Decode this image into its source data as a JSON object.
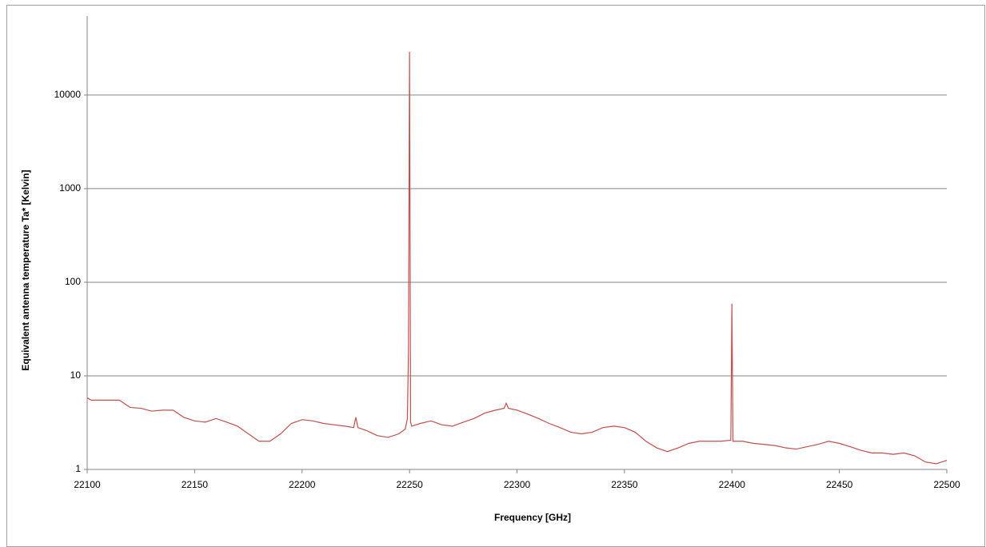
{
  "chart_data": {
    "type": "line",
    "x_label": "Frequency [GHz]",
    "y_label": "Equivalent antenna temperature Ta* [Kelvin]",
    "color": "#c0504d",
    "log_y": true,
    "grid": true,
    "xlim": [
      22100,
      22500
    ],
    "xticks": [
      22100,
      22150,
      22200,
      22250,
      22300,
      22350,
      22400,
      22450,
      22500
    ],
    "ylim": [
      1,
      70000
    ],
    "yticks": [
      1,
      10,
      100,
      1000,
      10000
    ],
    "x": [
      22100,
      22102,
      22105,
      22110,
      22115,
      22120,
      22125,
      22130,
      22135,
      22140,
      22145,
      22150,
      22155,
      22160,
      22165,
      22170,
      22175,
      22180,
      22185,
      22190,
      22195,
      22200,
      22205,
      22210,
      22215,
      22220,
      22224,
      22225,
      22226,
      22230,
      22235,
      22240,
      22245,
      22248,
      22249,
      22249.5,
      22250,
      22250.5,
      22251,
      22255,
      22260,
      22265,
      22270,
      22275,
      22280,
      22285,
      22290,
      22294,
      22295,
      22296,
      22300,
      22305,
      22310,
      22315,
      22320,
      22325,
      22330,
      22335,
      22340,
      22345,
      22350,
      22355,
      22360,
      22365,
      22370,
      22375,
      22380,
      22385,
      22390,
      22395,
      22399.5,
      22400,
      22400.5,
      22405,
      22410,
      22415,
      22420,
      22425,
      22430,
      22435,
      22440,
      22445,
      22450,
      22455,
      22460,
      22465,
      22470,
      22475,
      22480,
      22485,
      22490,
      22495,
      22500
    ],
    "values": [
      5.8,
      5.5,
      5.5,
      5.5,
      5.5,
      4.6,
      4.5,
      4.2,
      4.3,
      4.3,
      3.6,
      3.3,
      3.2,
      3.5,
      3.2,
      2.9,
      2.4,
      2.0,
      2.0,
      2.4,
      3.1,
      3.4,
      3.3,
      3.1,
      3.0,
      2.9,
      2.8,
      3.6,
      2.8,
      2.6,
      2.3,
      2.2,
      2.4,
      2.7,
      3.5,
      18,
      29000,
      3.2,
      2.9,
      3.1,
      3.3,
      3.0,
      2.9,
      3.2,
      3.5,
      4.0,
      4.3,
      4.5,
      5.1,
      4.5,
      4.3,
      3.9,
      3.5,
      3.1,
      2.8,
      2.5,
      2.4,
      2.5,
      2.8,
      2.9,
      2.8,
      2.5,
      2.0,
      1.7,
      1.55,
      1.7,
      1.9,
      2.0,
      2.0,
      2.0,
      2.05,
      59,
      2.0,
      2.0,
      1.9,
      1.85,
      1.8,
      1.7,
      1.65,
      1.75,
      1.85,
      2.0,
      1.9,
      1.75,
      1.6,
      1.5,
      1.5,
      1.45,
      1.5,
      1.4,
      1.2,
      1.15,
      1.25
    ]
  }
}
